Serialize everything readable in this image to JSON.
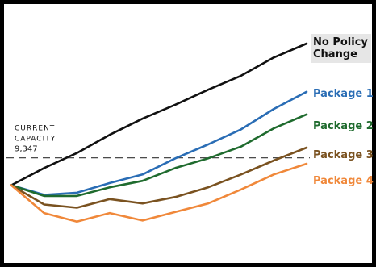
{
  "chart_data": {
    "type": "line",
    "x": [
      0,
      1,
      2,
      3,
      4,
      5,
      6,
      7,
      8,
      9
    ],
    "ylim": [
      0,
      20000
    ],
    "reference_line": {
      "value": 9347,
      "label_lines": [
        "CURRENT",
        "CAPACITY:",
        "9,347"
      ],
      "style": "dashed"
    },
    "series": [
      {
        "name_lines": [
          "No Policy",
          "Change"
        ],
        "color": "#111111",
        "label_bg": "#e6e6e6",
        "values": [
          6800,
          8400,
          9800,
          11500,
          13000,
          14300,
          15700,
          17000,
          18700,
          20000
        ]
      },
      {
        "name_lines": [
          "Package 1"
        ],
        "color": "#2a6db5",
        "label_bg": "#ffffff",
        "values": [
          6800,
          5900,
          6100,
          7000,
          7800,
          9300,
          10600,
          12000,
          13900,
          15500
        ]
      },
      {
        "name_lines": [
          "Package 2"
        ],
        "color": "#1f6b2e",
        "label_bg": "#ffffff",
        "values": [
          6800,
          5800,
          5800,
          6600,
          7200,
          8400,
          9300,
          10400,
          12100,
          13400
        ]
      },
      {
        "name_lines": [
          "Package 3"
        ],
        "color": "#7a5220",
        "label_bg": "#ffffff",
        "values": [
          6800,
          5000,
          4700,
          5500,
          5100,
          5700,
          6600,
          7800,
          9100,
          10300
        ]
      },
      {
        "name_lines": [
          "Package 4"
        ],
        "color": "#f0883a",
        "label_bg": "#ffffff",
        "values": [
          6800,
          4200,
          3400,
          4200,
          3500,
          4300,
          5100,
          6400,
          7800,
          8800
        ]
      }
    ]
  }
}
